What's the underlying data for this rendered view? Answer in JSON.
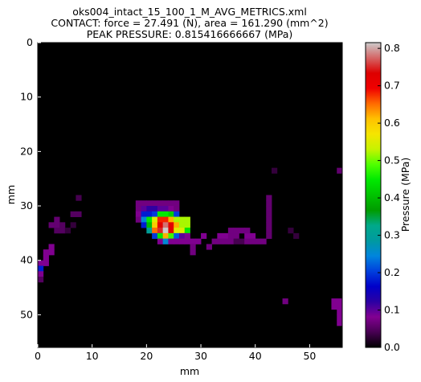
{
  "chart_data": {
    "type": "heatmap",
    "title_lines": [
      "oks004_intact_15_100_1_M_AVG_METRICS.xml",
      "CONTACT: force = 27.491 (N), area = 161.290 (mm^2)",
      "PEAK PRESSURE: 0.815416666667 (MPa)"
    ],
    "xlabel": "mm",
    "ylabel": "mm",
    "colorbar_label": "Pressure (MPa)",
    "xlim": [
      0,
      56
    ],
    "ylim": [
      56,
      0
    ],
    "x_ticks": [
      0,
      10,
      20,
      30,
      40,
      50
    ],
    "y_ticks": [
      0,
      10,
      20,
      30,
      40,
      50
    ],
    "color_range": [
      0,
      0.8154
    ],
    "colorbar_ticks": [
      0.0,
      0.1,
      0.2,
      0.3,
      0.4,
      0.5,
      0.6,
      0.7,
      0.8
    ],
    "colormap": "nipy_spectral",
    "background_value": 0,
    "cells": [
      [
        18,
        29,
        0.07
      ],
      [
        19,
        29,
        0.07
      ],
      [
        20,
        29,
        0.07
      ],
      [
        21,
        29,
        0.07
      ],
      [
        22,
        29,
        0.07
      ],
      [
        23,
        29,
        0.07
      ],
      [
        24,
        29,
        0.07
      ],
      [
        25,
        29,
        0.07
      ],
      [
        18,
        30,
        0.07
      ],
      [
        19,
        30,
        0.1
      ],
      [
        20,
        30,
        0.12
      ],
      [
        21,
        30,
        0.12
      ],
      [
        22,
        30,
        0.1
      ],
      [
        23,
        30,
        0.1
      ],
      [
        24,
        30,
        0.08
      ],
      [
        25,
        30,
        0.07
      ],
      [
        18,
        31,
        0.08
      ],
      [
        19,
        31,
        0.18
      ],
      [
        20,
        31,
        0.18
      ],
      [
        21,
        31,
        0.2
      ],
      [
        22,
        31,
        0.45
      ],
      [
        23,
        31,
        0.45
      ],
      [
        24,
        31,
        0.42
      ],
      [
        25,
        31,
        0.2
      ],
      [
        18,
        32,
        0.07
      ],
      [
        19,
        32,
        0.25
      ],
      [
        20,
        32,
        0.45
      ],
      [
        21,
        32,
        0.55
      ],
      [
        22,
        32,
        0.68
      ],
      [
        23,
        32,
        0.68
      ],
      [
        24,
        32,
        0.62
      ],
      [
        25,
        32,
        0.52
      ],
      [
        26,
        32,
        0.52
      ],
      [
        27,
        32,
        0.52
      ],
      [
        19,
        33,
        0.18
      ],
      [
        20,
        33,
        0.4
      ],
      [
        21,
        33,
        0.6
      ],
      [
        22,
        33,
        0.72
      ],
      [
        23,
        33,
        0.78
      ],
      [
        24,
        33,
        0.72
      ],
      [
        25,
        33,
        0.62
      ],
      [
        26,
        33,
        0.52
      ],
      [
        27,
        33,
        0.52
      ],
      [
        20,
        34,
        0.3
      ],
      [
        21,
        34,
        0.65
      ],
      [
        22,
        34,
        0.75
      ],
      [
        23,
        34,
        0.82
      ],
      [
        24,
        34,
        0.72
      ],
      [
        25,
        34,
        0.55
      ],
      [
        26,
        34,
        0.55
      ],
      [
        27,
        34,
        0.45
      ],
      [
        21,
        35,
        0.2
      ],
      [
        22,
        35,
        0.45
      ],
      [
        23,
        35,
        0.62
      ],
      [
        24,
        35,
        0.48
      ],
      [
        25,
        35,
        0.22
      ],
      [
        26,
        35,
        0.1
      ],
      [
        27,
        35,
        0.08
      ],
      [
        22,
        36,
        0.08
      ],
      [
        23,
        36,
        0.25
      ],
      [
        24,
        36,
        0.08
      ],
      [
        25,
        36,
        0.08
      ],
      [
        26,
        36,
        0.08
      ],
      [
        27,
        36,
        0.08
      ],
      [
        28,
        36,
        0.08
      ],
      [
        29,
        36,
        0.08
      ],
      [
        28,
        37,
        0.07
      ],
      [
        31,
        37,
        0.07
      ],
      [
        28,
        38,
        0.07
      ],
      [
        30,
        35,
        0.08
      ],
      [
        33,
        35,
        0.08
      ],
      [
        34,
        35,
        0.08
      ],
      [
        35,
        35,
        0.07
      ],
      [
        36,
        35,
        0.07
      ],
      [
        38,
        35,
        0.08
      ],
      [
        39,
        35,
        0.08
      ],
      [
        32,
        36,
        0.07
      ],
      [
        33,
        36,
        0.07
      ],
      [
        34,
        36,
        0.07
      ],
      [
        35,
        36,
        0.07
      ],
      [
        36,
        36,
        0.04
      ],
      [
        37,
        36,
        0.04
      ],
      [
        38,
        36,
        0.07
      ],
      [
        39,
        36,
        0.07
      ],
      [
        40,
        36,
        0.07
      ],
      [
        41,
        36,
        0.07
      ],
      [
        35,
        34,
        0.07
      ],
      [
        36,
        34,
        0.07
      ],
      [
        37,
        34,
        0.07
      ],
      [
        38,
        34,
        0.07
      ],
      [
        42,
        28,
        0.06
      ],
      [
        42,
        29,
        0.06
      ],
      [
        42,
        30,
        0.06
      ],
      [
        42,
        31,
        0.06
      ],
      [
        42,
        32,
        0.06
      ],
      [
        42,
        33,
        0.06
      ],
      [
        42,
        34,
        0.06
      ],
      [
        42,
        35,
        0.06
      ],
      [
        43,
        23,
        0.03
      ],
      [
        55,
        23,
        0.06
      ],
      [
        7,
        28,
        0.04
      ],
      [
        6,
        31,
        0.05
      ],
      [
        7,
        31,
        0.05
      ],
      [
        3,
        32,
        0.06
      ],
      [
        2,
        33,
        0.06
      ],
      [
        3,
        33,
        0.06
      ],
      [
        4,
        33,
        0.05
      ],
      [
        6,
        33,
        0.03
      ],
      [
        3,
        34,
        0.05
      ],
      [
        4,
        34,
        0.05
      ],
      [
        5,
        34,
        0.03
      ],
      [
        2,
        37,
        0.08
      ],
      [
        1,
        38,
        0.08
      ],
      [
        2,
        38,
        0.08
      ],
      [
        1,
        39,
        0.08
      ],
      [
        0,
        40,
        0.08
      ],
      [
        1,
        40,
        0.08
      ],
      [
        0,
        41,
        0.18
      ],
      [
        0,
        42,
        0.08
      ],
      [
        0,
        43,
        0.05
      ],
      [
        46,
        34,
        0.03
      ],
      [
        47,
        35,
        0.03
      ],
      [
        45,
        47,
        0.07
      ],
      [
        54,
        47,
        0.08
      ],
      [
        55,
        47,
        0.08
      ],
      [
        54,
        48,
        0.08
      ],
      [
        55,
        48,
        0.08
      ],
      [
        55,
        49,
        0.08
      ],
      [
        55,
        50,
        0.08
      ],
      [
        55,
        51,
        0.08
      ]
    ]
  }
}
